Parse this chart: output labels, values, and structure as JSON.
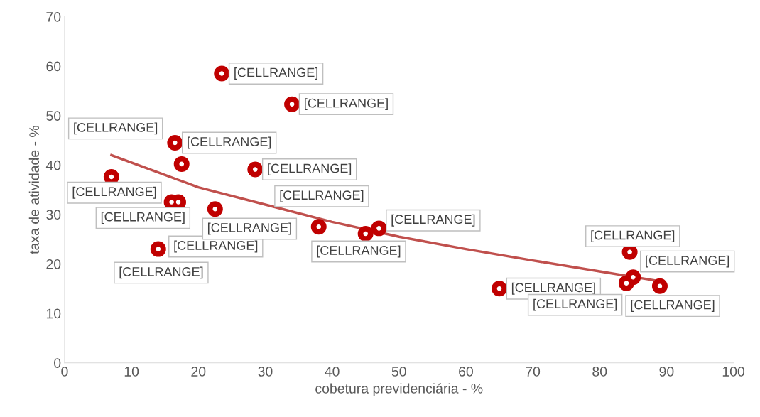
{
  "chart_data": {
    "type": "scatter",
    "xlabel": "cobetura previdenciária - %",
    "ylabel": "taxa de atividade - %",
    "xlim": [
      0,
      100
    ],
    "xticks": [
      0,
      10,
      20,
      30,
      40,
      50,
      60,
      70,
      80,
      90,
      100
    ],
    "ylim": [
      0,
      70
    ],
    "yticks": [
      0,
      10,
      20,
      30,
      40,
      50,
      60,
      70
    ],
    "grid": false,
    "legend": false,
    "series": [
      {
        "marker": "circle",
        "color": "#c00000",
        "x": [
          23.5,
          34,
          16.5,
          17.5,
          28.5,
          7,
          16,
          17,
          22.5,
          38,
          45,
          47,
          14,
          65,
          84.5,
          85,
          84,
          89
        ],
        "values": [
          58.5,
          52.3,
          44.5,
          40.2,
          39.1,
          37.6,
          32.5,
          32.5,
          31.1,
          27.5,
          26.1,
          27.2,
          23,
          15,
          22.4,
          17.3,
          16.1,
          15.5
        ],
        "value_labels": [
          "[CELLRANGE]",
          "[CELLRANGE]",
          "[CELLRANGE]",
          "[CELLRANGE]",
          "[CELLRANGE]",
          "[CELLRANGE]",
          "[CELLRANGE]",
          "[CELLRANGE]",
          "[CELLRANGE]",
          "[CELLRANGE]",
          "[CELLRANGE]",
          "[CELLRANGE]",
          "[CELLRANGE]",
          "[CELLRANGE]",
          "[CELLRANGE]",
          "[CELLRANGE]",
          "[CELLRANGE]",
          "[CELLRANGE]"
        ]
      },
      {
        "type": "line",
        "marker": "none",
        "color": "#c0504d",
        "x": [
          7,
          20,
          30,
          40,
          50,
          60,
          70,
          80,
          89
        ],
        "values": [
          42,
          35.5,
          32,
          28.5,
          25.5,
          23,
          20.7,
          18.5,
          16.5
        ]
      }
    ]
  }
}
